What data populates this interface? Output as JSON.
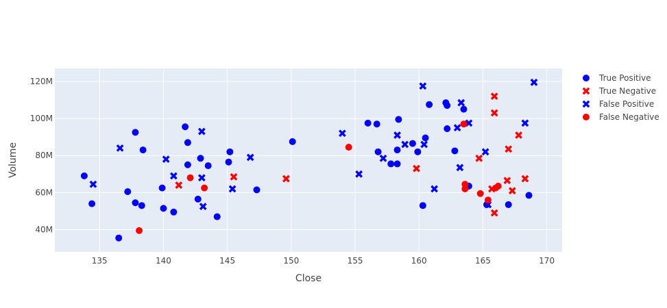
{
  "chart_data": {
    "type": "scatter",
    "xlabel": "Close",
    "ylabel": "Volume",
    "xlim": [
      131.5,
      171.2
    ],
    "ylim": [
      28,
      127
    ],
    "x_ticks": [
      135,
      140,
      145,
      150,
      155,
      160,
      165,
      170
    ],
    "x_tick_labels": [
      "135",
      "140",
      "145",
      "150",
      "155",
      "160",
      "165",
      "170"
    ],
    "y_ticks": [
      40,
      60,
      80,
      100,
      120
    ],
    "y_tick_labels": [
      "40M",
      "60M",
      "80M",
      "100M",
      "120M"
    ],
    "grid": true,
    "legend_position": "right",
    "colors": {
      "plot_bg": "#E5ECF6",
      "grid": "#ffffff",
      "blue": "#0000FF",
      "red": "#FF0000"
    },
    "series": [
      {
        "name": "True Positive",
        "color": "#0000FF",
        "marker": "circle",
        "points": [
          [
            133.8,
            69
          ],
          [
            134.4,
            54
          ],
          [
            136.5,
            35.5
          ],
          [
            137.2,
            60.5
          ],
          [
            137.8,
            54.5
          ],
          [
            137.8,
            92.5
          ],
          [
            138.3,
            53
          ],
          [
            138.4,
            83
          ],
          [
            139.9,
            62.5
          ],
          [
            140.0,
            51.5
          ],
          [
            140.8,
            49.5
          ],
          [
            141.7,
            95.5
          ],
          [
            141.9,
            75
          ],
          [
            141.9,
            87
          ],
          [
            142.7,
            56.5
          ],
          [
            142.9,
            78.5
          ],
          [
            143.5,
            74.5
          ],
          [
            144.2,
            47
          ],
          [
            145.1,
            76.5
          ],
          [
            145.2,
            82
          ],
          [
            147.3,
            61.5
          ],
          [
            150.1,
            87.5
          ],
          [
            156.0,
            97.5
          ],
          [
            156.7,
            97
          ],
          [
            156.8,
            82
          ],
          [
            157.8,
            75.5
          ],
          [
            158.3,
            83
          ],
          [
            158.3,
            75.5
          ],
          [
            158.4,
            99.5
          ],
          [
            159.5,
            86.5
          ],
          [
            159.9,
            82
          ],
          [
            160.3,
            53
          ],
          [
            160.5,
            89.5
          ],
          [
            160.8,
            107.5
          ],
          [
            162.1,
            108.5
          ],
          [
            162.2,
            107
          ],
          [
            162.2,
            94.5
          ],
          [
            162.8,
            82.5
          ],
          [
            163.5,
            105
          ],
          [
            163.9,
            63.5
          ],
          [
            165.3,
            53.5
          ],
          [
            167.0,
            53.5
          ],
          [
            168.6,
            58.5
          ]
        ]
      },
      {
        "name": "True Negative",
        "color": "#FF0000",
        "marker": "x",
        "points": [
          [
            141.2,
            64
          ],
          [
            145.5,
            68.5
          ],
          [
            149.6,
            67.5
          ],
          [
            159.8,
            73
          ],
          [
            164.7,
            78.5
          ],
          [
            165.7,
            62
          ],
          [
            165.9,
            112
          ],
          [
            165.9,
            103
          ],
          [
            165.9,
            49
          ],
          [
            166.9,
            66.5
          ],
          [
            167.0,
            83.5
          ],
          [
            167.3,
            61
          ],
          [
            167.8,
            91
          ],
          [
            168.3,
            67.5
          ]
        ]
      },
      {
        "name": "False Positive",
        "color": "#0000FF",
        "marker": "x",
        "points": [
          [
            134.5,
            64.5
          ],
          [
            136.6,
            84
          ],
          [
            140.2,
            78
          ],
          [
            140.8,
            69
          ],
          [
            143.0,
            93
          ],
          [
            143.0,
            68
          ],
          [
            143.1,
            52.5
          ],
          [
            145.4,
            62
          ],
          [
            146.8,
            79
          ],
          [
            154.0,
            92
          ],
          [
            155.3,
            70
          ],
          [
            157.2,
            78.5
          ],
          [
            158.3,
            91
          ],
          [
            158.9,
            86
          ],
          [
            160.3,
            117.5
          ],
          [
            160.4,
            86
          ],
          [
            161.2,
            62
          ],
          [
            163.0,
            95
          ],
          [
            163.2,
            73.5
          ],
          [
            163.3,
            108.5
          ],
          [
            163.9,
            97.5
          ],
          [
            165.2,
            82
          ],
          [
            165.4,
            53.5
          ],
          [
            168.3,
            97.5
          ],
          [
            169.0,
            119.5
          ]
        ]
      },
      {
        "name": "False Negative",
        "color": "#FF0000",
        "marker": "circle",
        "points": [
          [
            138.1,
            39.5
          ],
          [
            142.1,
            68
          ],
          [
            143.2,
            62.5
          ],
          [
            154.5,
            84.5
          ],
          [
            163.5,
            97
          ],
          [
            163.6,
            64.5
          ],
          [
            163.6,
            62
          ],
          [
            164.8,
            59.5
          ],
          [
            165.4,
            56
          ],
          [
            166.0,
            62.5
          ],
          [
            166.2,
            63.5
          ]
        ]
      }
    ]
  }
}
